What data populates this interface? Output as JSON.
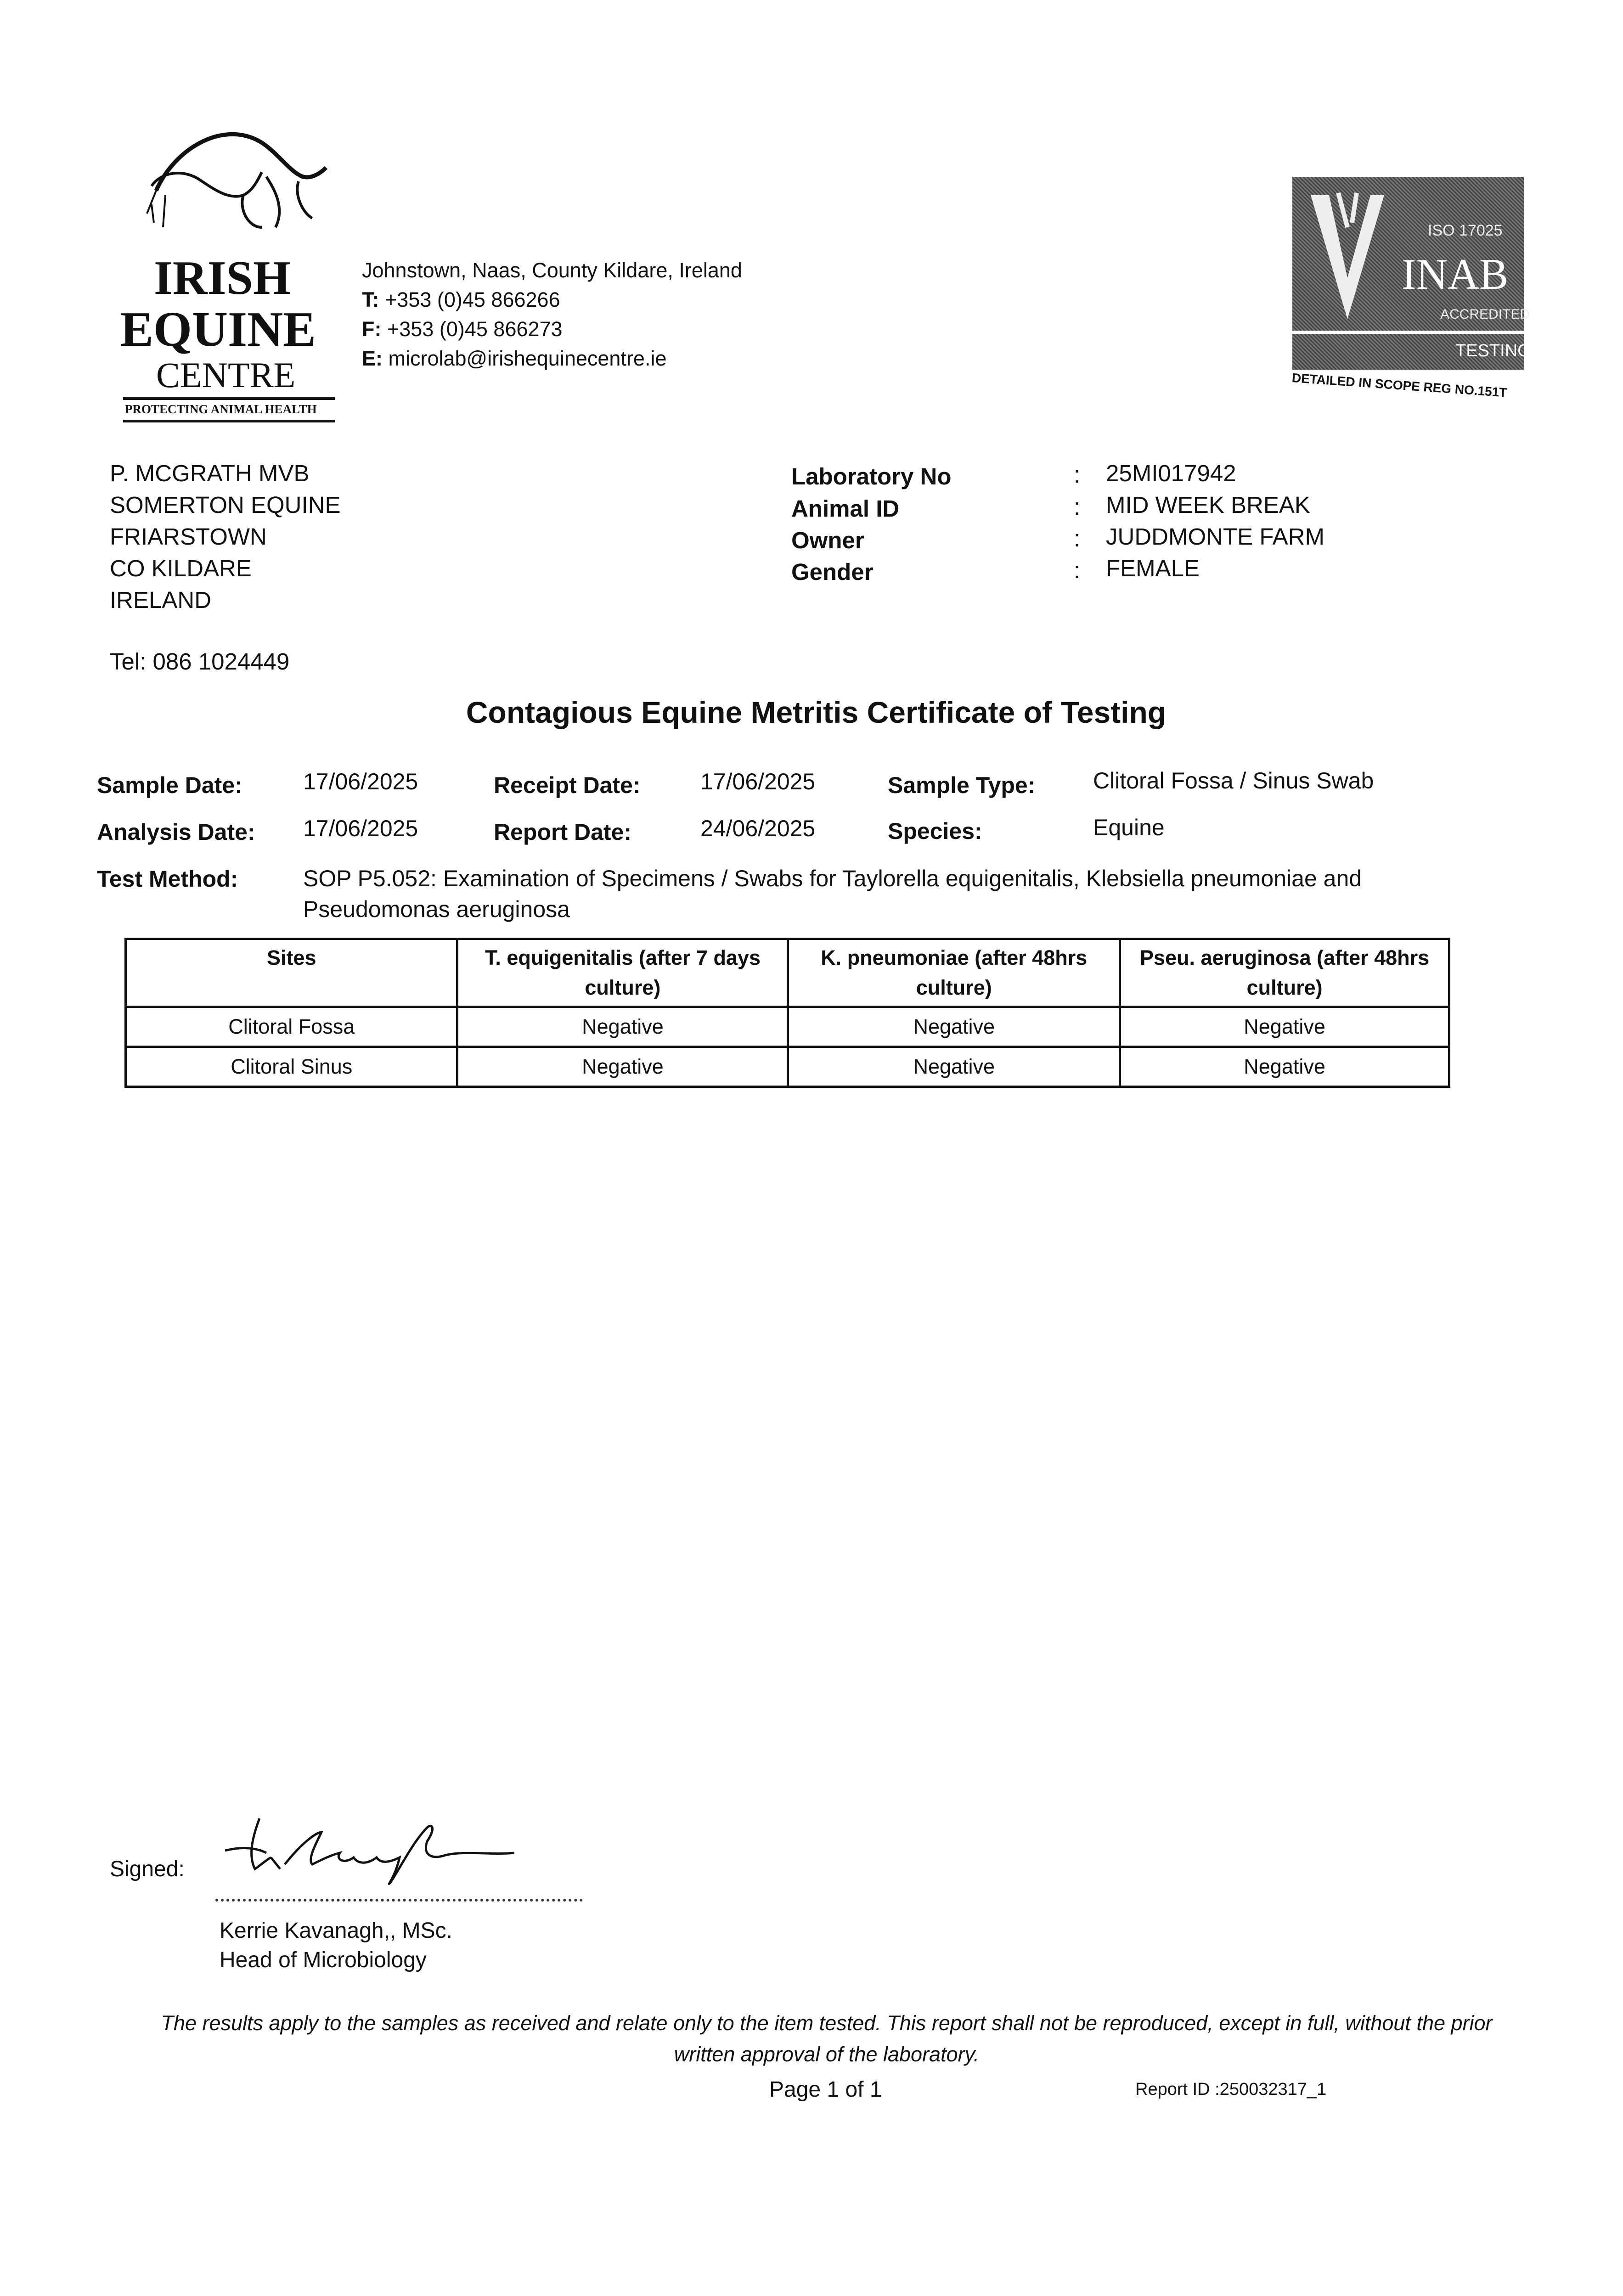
{
  "letterhead": {
    "logo_lines": [
      "IRISH",
      "EQUINE",
      "CENTRE"
    ],
    "logo_tagline": "PROTECTING ANIMAL HEALTH",
    "address": "Johnstown, Naas, County Kildare, Ireland",
    "phone_label": "T:",
    "phone": "+353 (0)45 866266",
    "fax_label": "F:",
    "fax": "+353 (0)45 866273",
    "email_label": "E:",
    "email": "microlab@irishequinecentre.ie",
    "accreditation": {
      "iso": "ISO 17025",
      "brand": "INAB",
      "accredited": "ACCREDITED",
      "testing": "TESTING",
      "scope": "DETAILED IN SCOPE REG NO.151T"
    }
  },
  "client": {
    "lines": [
      "P. MCGRATH  MVB",
      "SOMERTON EQUINE",
      "FRIARSTOWN",
      "CO KILDARE",
      "IRELAND"
    ],
    "tel": "Tel: 086 1024449"
  },
  "details": [
    {
      "label": "Laboratory No",
      "value": "25MI017942"
    },
    {
      "label": "Animal ID",
      "value": "MID WEEK BREAK"
    },
    {
      "label": "Owner",
      "value": "JUDDMONTE FARM"
    },
    {
      "label": "Gender",
      "value": "FEMALE"
    }
  ],
  "title": "Contagious Equine Metritis Certificate of Testing",
  "sample_info": {
    "sample_date_label": "Sample Date:",
    "sample_date": "17/06/2025",
    "receipt_date_label": "Receipt Date:",
    "receipt_date": "17/06/2025",
    "sample_type_label": "Sample Type:",
    "sample_type": "Clitoral Fossa / Sinus Swab",
    "analysis_date_label": "Analysis Date:",
    "analysis_date": "17/06/2025",
    "report_date_label": "Report Date:",
    "report_date": "24/06/2025",
    "species_label": "Species:",
    "species": "Equine",
    "test_method_label": "Test Method:",
    "test_method": "SOP P5.052: Examination of Specimens / Swabs for Taylorella equigenitalis, Klebsiella pneumoniae and Pseudomonas aeruginosa"
  },
  "results": {
    "headers": [
      "Sites",
      "T. equigenitalis (after 7 days culture)",
      "K. pneumoniae (after 48hrs culture)",
      "Pseu. aeruginosa (after 48hrs culture)"
    ],
    "rows": [
      [
        "Clitoral Fossa",
        "Negative",
        "Negative",
        "Negative"
      ],
      [
        "Clitoral Sinus",
        "Negative",
        "Negative",
        "Negative"
      ]
    ]
  },
  "signature": {
    "signed_label": "Signed:",
    "signature_text": "K. Kavanagh",
    "name": "Kerrie Kavanagh,, MSc.",
    "role": "Head of Microbiology"
  },
  "footer": {
    "disclaimer": "The results apply to the samples as received and relate only to the item tested. This report shall not be reproduced, except in full, without the prior written approval of the laboratory.",
    "page": "Page 1 of 1",
    "report_id": "Report ID :250032317_1"
  }
}
